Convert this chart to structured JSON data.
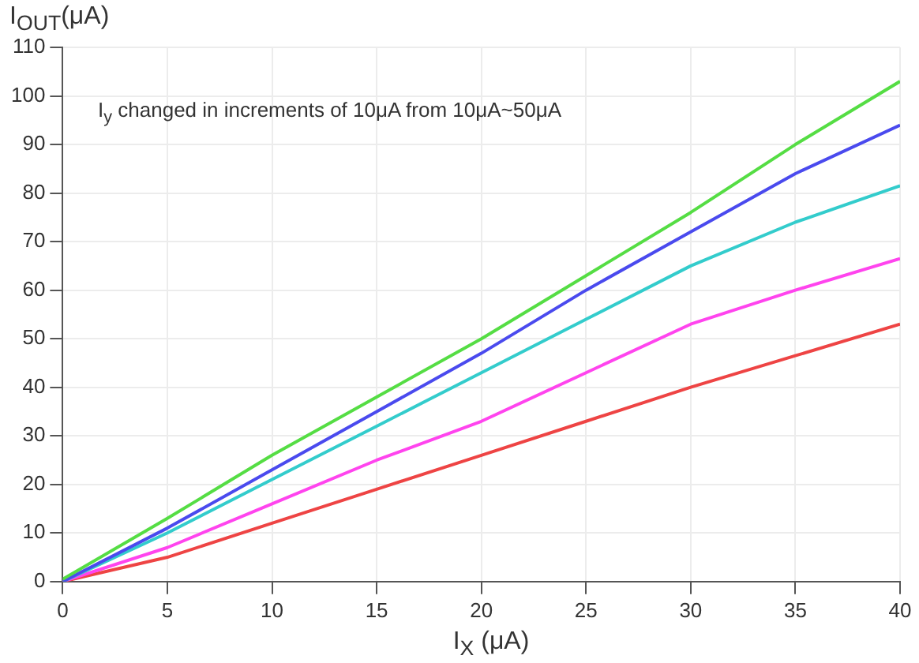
{
  "chart_data": {
    "type": "line",
    "xlabel": "I$_{X}$ (μA)",
    "ylabel": "I$_{OUT}$(μA)",
    "annotations": [
      "I$_{y}$ changed in increments of 10μA from 10μA~50μA"
    ],
    "x": [
      0,
      5,
      10,
      15,
      20,
      25,
      30,
      35,
      40
    ],
    "series": [
      {
        "color": "#55dd44",
        "values": [
          0.5,
          13,
          26,
          38,
          50,
          63,
          76,
          90,
          103
        ]
      },
      {
        "color": "#4a4aee",
        "values": [
          0,
          11,
          23,
          35,
          47,
          60,
          72,
          84,
          94
        ]
      },
      {
        "color": "#33cccc",
        "values": [
          0,
          10,
          21,
          32,
          43,
          54,
          65,
          74,
          81.5
        ]
      },
      {
        "color": "#ff44ee",
        "values": [
          0,
          7,
          16,
          25,
          33,
          43,
          53,
          60,
          66.5
        ]
      },
      {
        "color": "#ee4444",
        "values": [
          0,
          5,
          12,
          19,
          26,
          33,
          40,
          46.5,
          53
        ]
      }
    ],
    "xlim": [
      0,
      40
    ],
    "xticks": [
      0,
      5,
      10,
      15,
      20,
      25,
      30,
      35,
      40
    ],
    "ylim": [
      0,
      110
    ],
    "yticks": [
      0,
      10,
      20,
      30,
      40,
      50,
      60,
      70,
      80,
      90,
      100,
      110
    ],
    "grid": true,
    "marker": "none",
    "line_style": "solid",
    "legend": false
  }
}
